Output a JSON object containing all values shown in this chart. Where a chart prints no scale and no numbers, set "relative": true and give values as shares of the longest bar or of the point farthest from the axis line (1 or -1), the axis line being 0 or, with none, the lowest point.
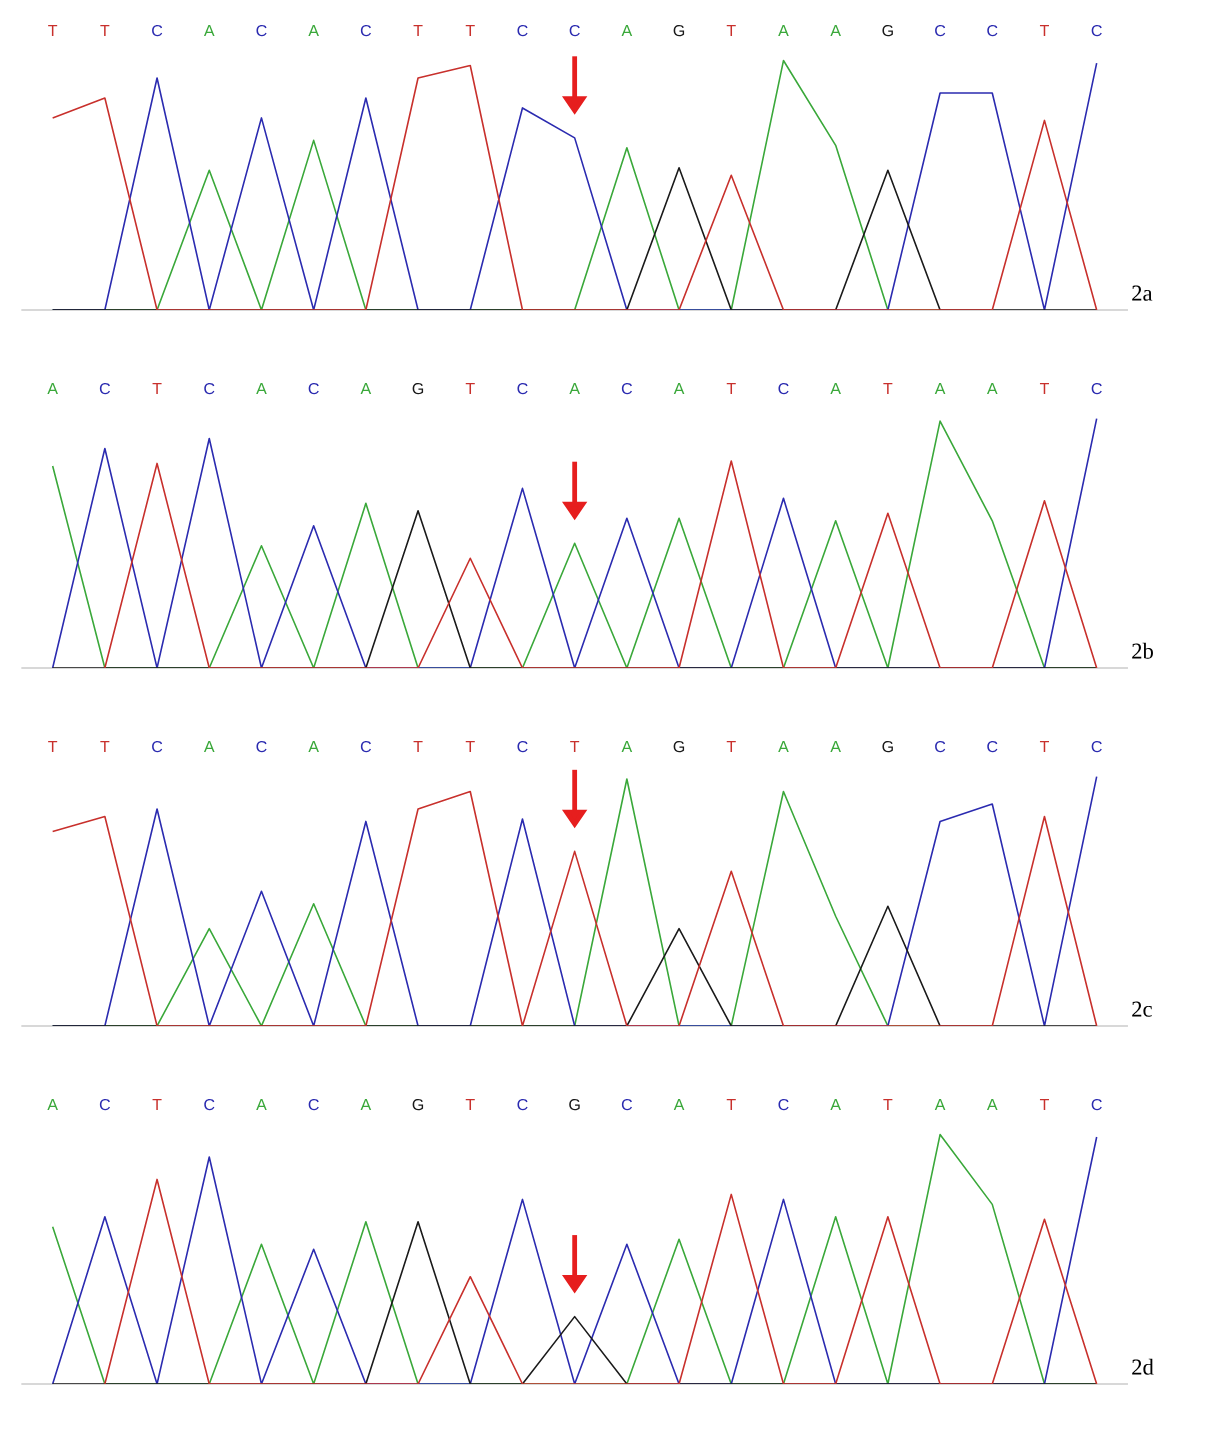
{
  "chart_data": [
    {
      "type": "line",
      "relative": true,
      "title": "2a",
      "categories": [
        "T",
        "T",
        "C",
        "A",
        "C",
        "A",
        "C",
        "T",
        "T",
        "C",
        "C",
        "A",
        "G",
        "T",
        "A",
        "A",
        "G",
        "C",
        "C",
        "T",
        "C"
      ],
      "series": [
        {
          "color": "#3aa83a",
          "values": [
            0,
            0,
            0,
            0.56,
            0,
            0.68,
            0,
            0,
            0,
            0,
            0,
            0.65,
            0,
            0,
            1,
            0.66,
            0,
            0,
            null,
            null,
            null
          ]
        },
        {
          "color": "#2b2bb0",
          "values": [
            0,
            0,
            0.93,
            0,
            0.77,
            0,
            0.85,
            0,
            0,
            0.81,
            0.69,
            0,
            0,
            0,
            0,
            0,
            0,
            0.87,
            0.87,
            0,
            0.99
          ]
        },
        {
          "color": "#1a1a1a",
          "values": [
            0,
            0,
            0,
            0,
            0,
            0,
            0,
            0,
            0,
            0,
            0,
            0,
            0.57,
            0,
            0,
            0,
            0.56,
            0,
            0,
            0,
            0
          ]
        },
        {
          "color": "#c8302c",
          "values": [
            0.77,
            0.85,
            0,
            0,
            0,
            0,
            0,
            0.93,
            0.98,
            0,
            0,
            0,
            0,
            0.54,
            0,
            0,
            0,
            0,
            0,
            0.76,
            0
          ]
        }
      ]
    },
    {
      "type": "line",
      "relative": true,
      "title": "2b",
      "categories": [
        "A",
        "C",
        "T",
        "C",
        "A",
        "C",
        "A",
        "G",
        "T",
        "C",
        "A",
        "C",
        "A",
        "T",
        "C",
        "A",
        "T",
        "A",
        "A",
        "T",
        "C"
      ],
      "series": [
        {
          "color": "#3aa83a",
          "values": [
            0.81,
            0,
            0,
            0,
            0.49,
            0,
            0.66,
            0,
            0,
            0,
            0.5,
            0,
            0.6,
            0,
            0,
            0.59,
            0,
            0.99,
            0.59,
            0,
            0
          ]
        },
        {
          "color": "#2b2bb0",
          "values": [
            0,
            0.88,
            0,
            0.92,
            0,
            0.57,
            0,
            0,
            0,
            0.72,
            0,
            0.6,
            0,
            0,
            0.68,
            0,
            0,
            0,
            0,
            0,
            1
          ]
        },
        {
          "color": "#1a1a1a",
          "values": [
            0,
            0,
            0,
            0,
            0,
            0,
            0,
            0.63,
            0,
            0,
            0,
            0,
            0,
            0,
            0,
            0,
            0,
            0,
            0,
            0,
            0
          ]
        },
        {
          "color": "#c8302c",
          "values": [
            null,
            0,
            0.82,
            0,
            0,
            0,
            0,
            0,
            0.44,
            0,
            0,
            0,
            0,
            0.83,
            0,
            0,
            0.62,
            0,
            0,
            0.67,
            0
          ]
        }
      ]
    },
    {
      "type": "line",
      "relative": true,
      "title": "2c",
      "categories": [
        "T",
        "T",
        "C",
        "A",
        "C",
        "A",
        "C",
        "T",
        "T",
        "C",
        "T",
        "A",
        "G",
        "T",
        "A",
        "A",
        "G",
        "C",
        "C",
        "T",
        "C"
      ],
      "series": [
        {
          "color": "#3aa83a",
          "values": [
            0,
            0,
            0,
            0.39,
            0,
            0.49,
            0,
            0,
            0,
            0,
            0,
            0.99,
            0,
            0,
            0.94,
            0.44,
            0,
            0,
            null,
            null,
            null
          ]
        },
        {
          "color": "#2b2bb0",
          "values": [
            0,
            0,
            0.87,
            0,
            0.54,
            0,
            0.82,
            0,
            0,
            0.83,
            0,
            0,
            0,
            0,
            0,
            0,
            0,
            0.82,
            0.89,
            0,
            1
          ]
        },
        {
          "color": "#1a1a1a",
          "values": [
            0,
            0,
            0,
            0,
            0,
            0,
            0,
            0,
            0,
            0,
            0,
            0,
            0.39,
            0,
            0,
            0,
            0.48,
            0,
            0,
            0,
            0
          ]
        },
        {
          "color": "#c8302c",
          "values": [
            0.78,
            0.84,
            0,
            0,
            0,
            0,
            0,
            0.87,
            0.94,
            0,
            0.7,
            0,
            0,
            0.62,
            0,
            0,
            0,
            0,
            0,
            0.84,
            0
          ]
        }
      ]
    },
    {
      "type": "line",
      "relative": true,
      "title": "2d",
      "categories": [
        "A",
        "C",
        "T",
        "C",
        "A",
        "C",
        "A",
        "G",
        "T",
        "C",
        "G",
        "C",
        "A",
        "T",
        "C",
        "A",
        "T",
        "A",
        "A",
        "T",
        "C"
      ],
      "series": [
        {
          "color": "#3aa83a",
          "values": [
            0.63,
            0,
            0,
            0,
            0.56,
            0,
            0.65,
            0,
            0,
            0,
            0,
            0,
            0.58,
            0,
            0,
            0.67,
            0,
            1,
            0.72,
            0,
            0
          ]
        },
        {
          "color": "#2b2bb0",
          "values": [
            0,
            0.67,
            0,
            0.91,
            0,
            0.54,
            0,
            0,
            0,
            0.74,
            0,
            0.56,
            0,
            0,
            0.74,
            0,
            0,
            0,
            0,
            0,
            0.99
          ]
        },
        {
          "color": "#1a1a1a",
          "values": [
            0,
            0,
            0,
            0,
            0,
            0,
            0,
            0.65,
            0,
            0,
            0.27,
            0,
            0,
            0,
            0,
            0,
            0,
            0,
            0,
            0,
            0
          ]
        },
        {
          "color": "#c8302c",
          "values": [
            null,
            0,
            0.82,
            0,
            0,
            0,
            0,
            0,
            0.43,
            0,
            0,
            0,
            0,
            0.76,
            0,
            0,
            0.67,
            0,
            0,
            0.66,
            0
          ]
        }
      ]
    }
  ]
}
